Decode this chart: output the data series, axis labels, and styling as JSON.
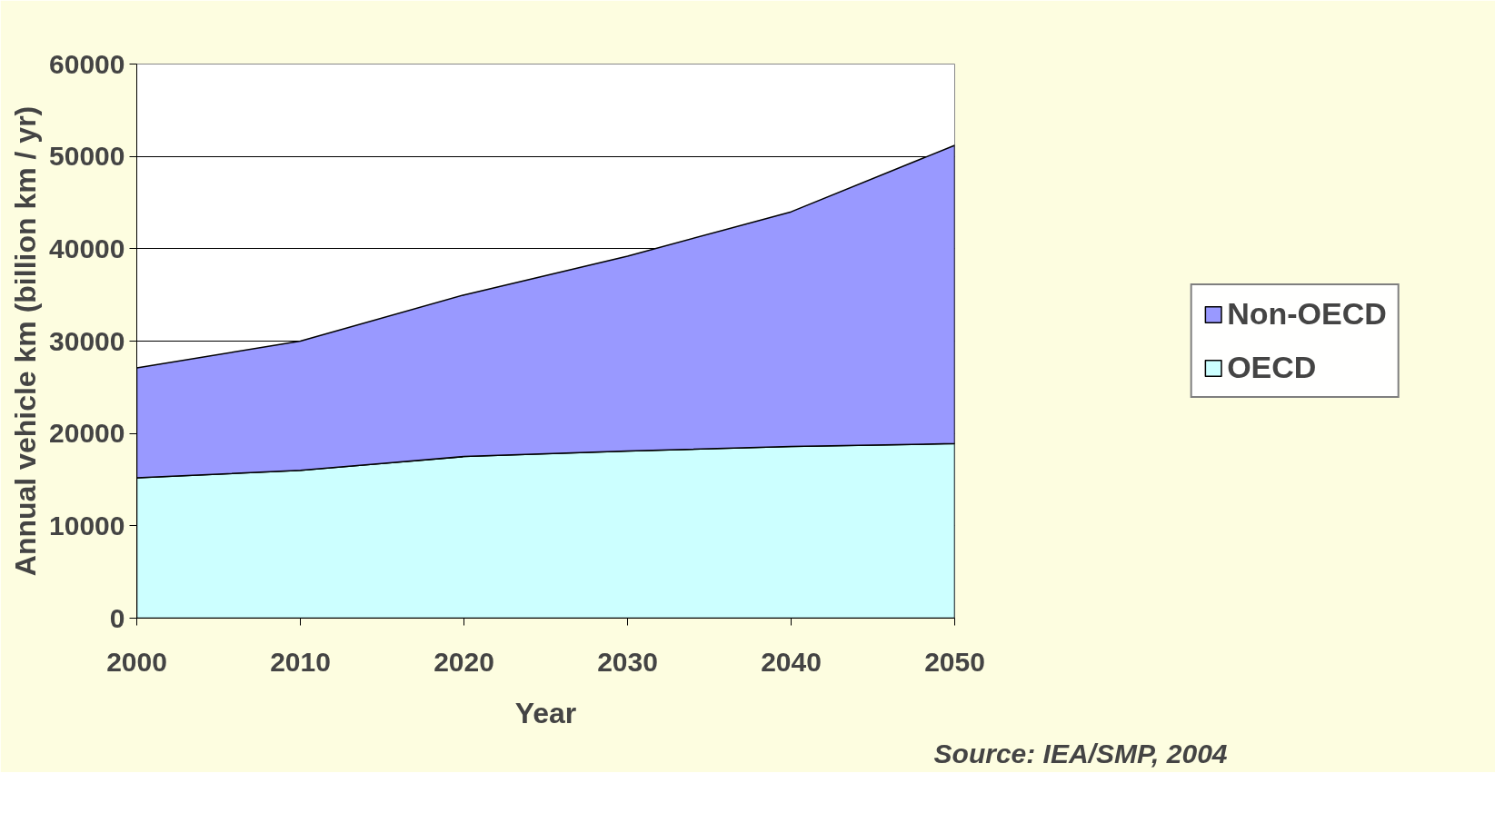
{
  "chart_data": {
    "type": "area",
    "stacked": true,
    "xlabel": "Year",
    "ylabel": "Annual vehicle km (billion km / yr)",
    "x": [
      2000,
      2010,
      2020,
      2030,
      2040,
      2050
    ],
    "series": [
      {
        "name": "OECD",
        "color": "#ccffff",
        "values": [
          15200,
          16000,
          17500,
          18100,
          18600,
          18900
        ]
      },
      {
        "name": "Non-OECD",
        "color": "#9999ff",
        "values": [
          11900,
          14000,
          17500,
          21100,
          25400,
          32300
        ]
      }
    ],
    "xlim": [
      2000,
      2050
    ],
    "xticks": [
      2000,
      2010,
      2020,
      2030,
      2040,
      2050
    ],
    "ylim": [
      0,
      60000
    ],
    "yticks": [
      0,
      10000,
      20000,
      30000,
      40000,
      50000,
      60000
    ],
    "grid": "y",
    "legend": "right",
    "annotations": [
      "Source: IEA/SMP, 2004"
    ]
  }
}
